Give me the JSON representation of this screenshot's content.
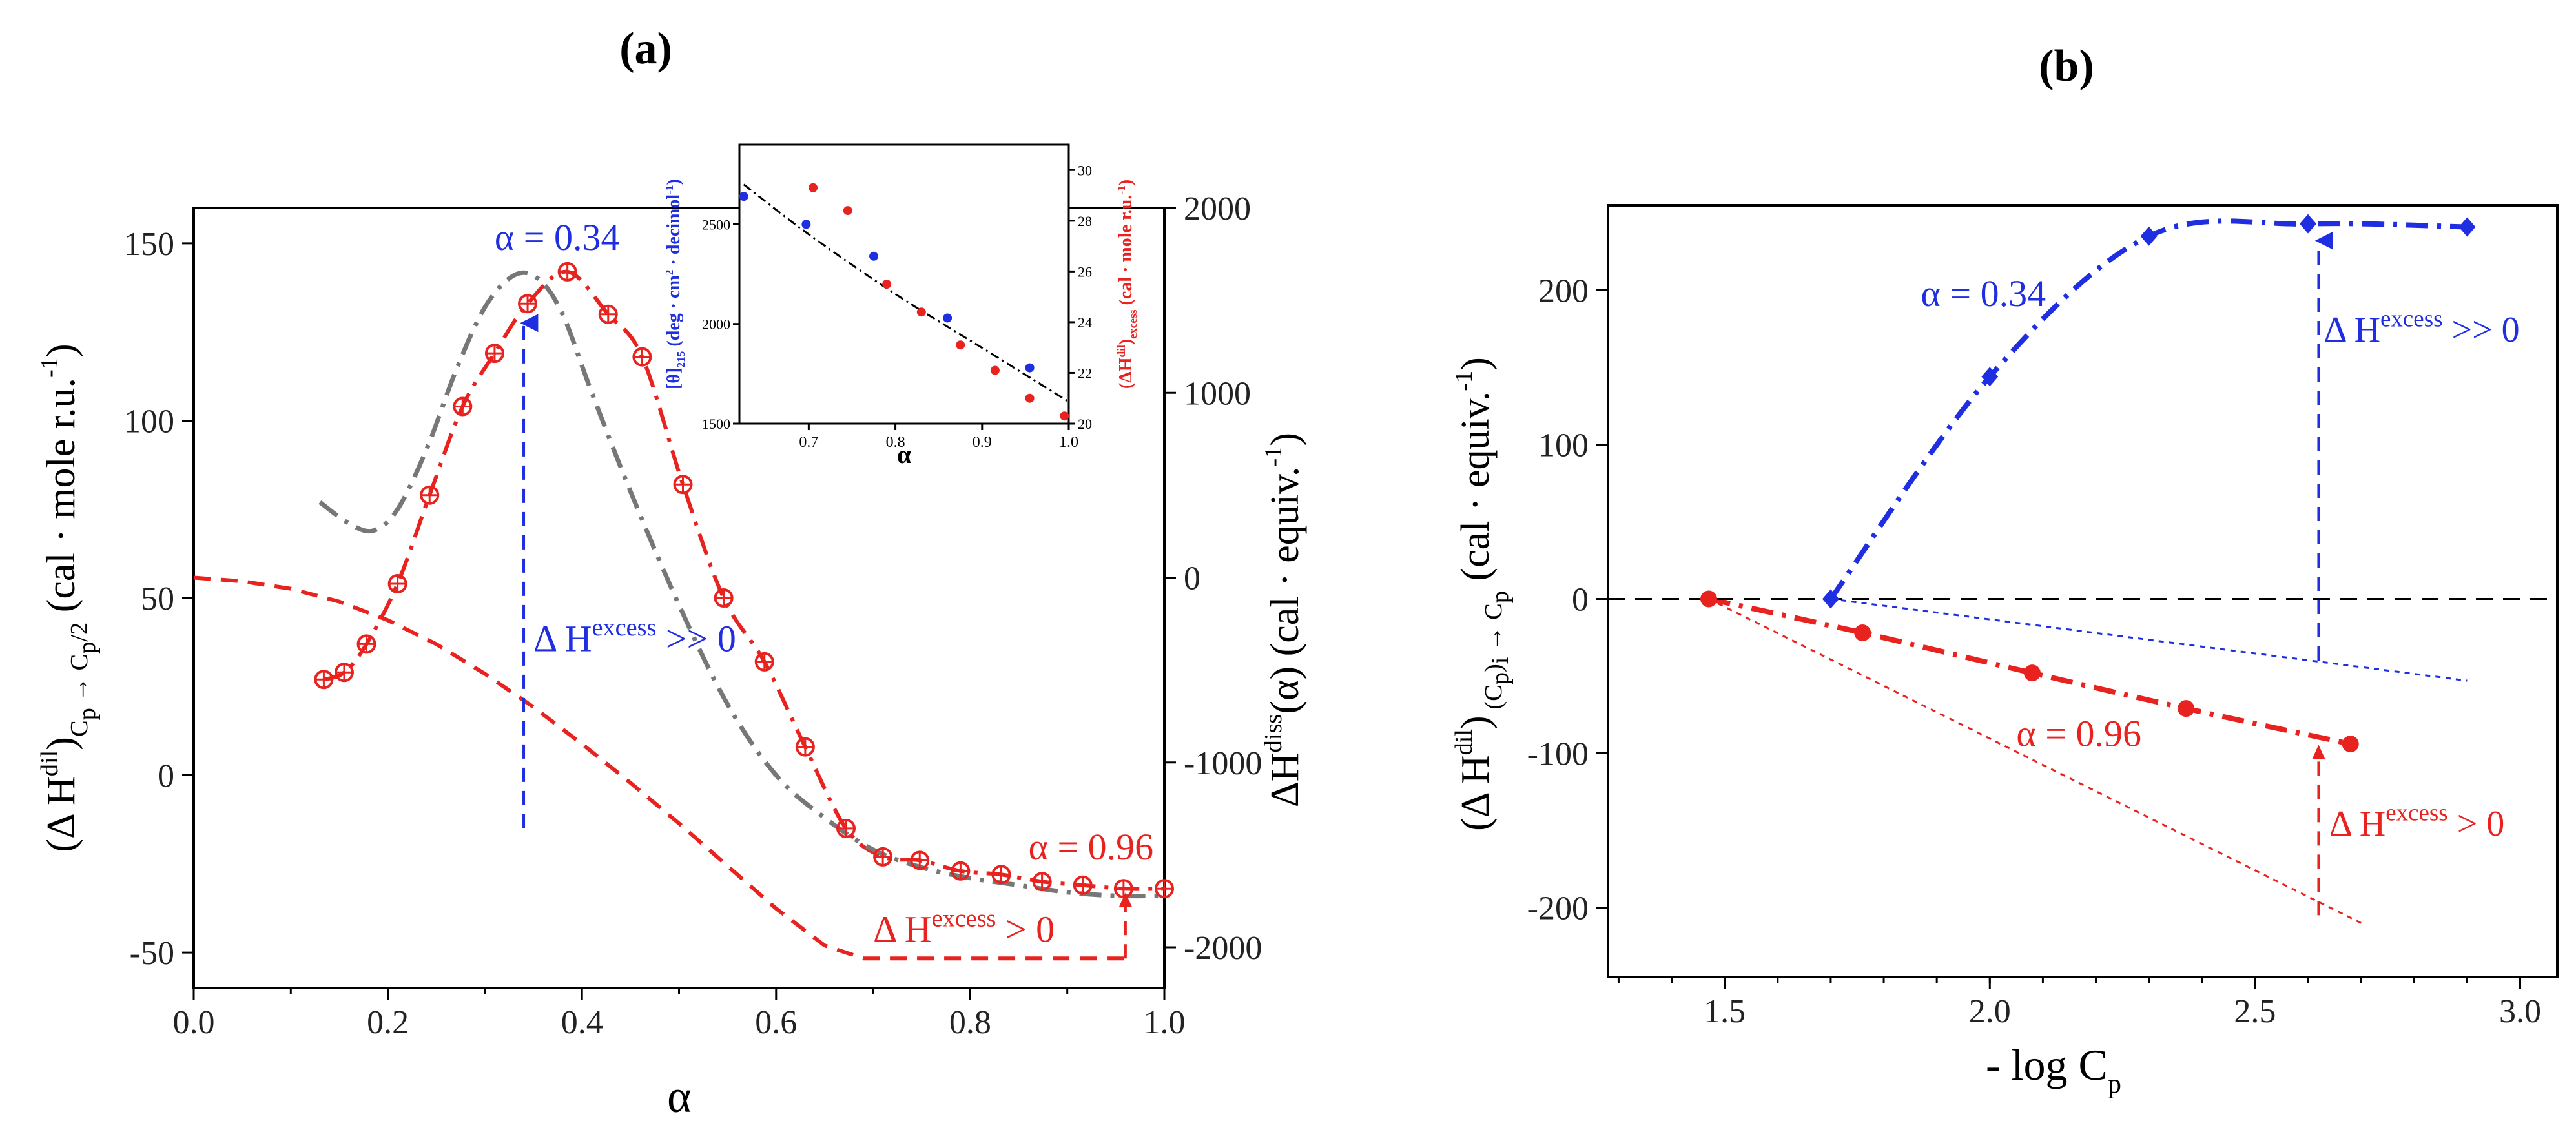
{
  "chart_data": [
    {
      "panel": "a",
      "type": "line",
      "title": "(a)",
      "xlabel": "α",
      "ylabel_left": {
        "main": "(Δ H",
        "sup": "dil",
        "close": ")",
        "sub": "C",
        "sub2": "p",
        "sub3": " → C",
        "sub4": "p",
        "sub5": "/2",
        "unit": " (cal · mole r.u.",
        "unit_sup": "-1",
        "unit_close": ")"
      },
      "ylabel_right": {
        "main": "ΔH",
        "sup": "diss",
        "tail": "(α) (cal · equiv.",
        "tail_sup": "-1",
        "tail_close": ")"
      },
      "xlim": [
        0.0,
        1.0
      ],
      "ylim_left": [
        -60,
        160
      ],
      "ylim_right": [
        -2220,
        2000
      ],
      "xticks": [
        "0.0",
        "0.2",
        "0.4",
        "0.6",
        "0.8",
        "1.0"
      ],
      "yticks_left": [
        "-50",
        "0",
        "50",
        "100",
        "150"
      ],
      "yticks_right": [
        "-2000",
        "-1000",
        "0",
        "1000",
        "2000"
      ],
      "series": [
        {
          "marker": "circle-plus",
          "color": "#e8231f",
          "style": "dash-dot",
          "x": [
            0.134,
            0.155,
            0.178,
            0.21,
            0.243,
            0.277,
            0.31,
            0.344,
            0.385,
            0.427,
            0.462,
            0.504,
            0.546,
            0.588,
            0.63,
            0.672,
            0.71,
            0.748,
            0.79,
            0.832,
            0.874,
            0.916,
            0.958,
            1.0
          ],
          "y": [
            27,
            29,
            37,
            54,
            79,
            104,
            119,
            133,
            142,
            130,
            118,
            82,
            50,
            32,
            8,
            -15,
            -23,
            -24,
            -27,
            -28,
            -30,
            -31,
            -32,
            -32
          ]
        },
        {
          "color": "#777777",
          "style": "dash-dot",
          "x": [
            0.13,
            0.16,
            0.185,
            0.21,
            0.24,
            0.27,
            0.3,
            0.33,
            0.355,
            0.38,
            0.41,
            0.45,
            0.5,
            0.55,
            0.6,
            0.65,
            0.7,
            0.75,
            0.8,
            0.85,
            0.9,
            0.95,
            1.0
          ],
          "y": [
            77,
            71,
            69,
            75,
            92,
            114,
            132,
            141,
            140,
            130,
            108,
            80,
            48,
            20,
            0,
            -12,
            -21,
            -26,
            -29,
            -31,
            -33,
            -34,
            -34
          ]
        },
        {
          "color": "#e8231f",
          "style": "dashed",
          "axis": "right",
          "x": [
            0.0,
            0.05,
            0.1,
            0.15,
            0.2,
            0.25,
            0.3,
            0.35,
            0.4,
            0.45,
            0.5,
            0.55,
            0.6,
            0.65,
            0.69,
            0.96
          ],
          "y": [
            0,
            -20,
            -60,
            -130,
            -230,
            -360,
            -520,
            -700,
            -900,
            -1110,
            -1330,
            -1560,
            -1790,
            -1990,
            -2060,
            -2060
          ]
        }
      ],
      "annotations": [
        {
          "text": "α = 0.34",
          "color": "#1f2ee0"
        },
        {
          "text": "Δ H",
          "sup": "excess",
          "tail": " >> 0",
          "color": "#1f2ee0"
        },
        {
          "text": "α = 0.96",
          "color": "#e8231f"
        },
        {
          "text": "Δ H",
          "sup": "excess",
          "tail": " > 0",
          "color": "#e8231f"
        }
      ],
      "inset": {
        "type": "scatter",
        "xlabel": "α",
        "xticks": [
          "0.7",
          "0.8",
          "0.9",
          "1.0"
        ],
        "xlim": [
          0.62,
          1.0
        ],
        "ylim_left": [
          1500,
          2900
        ],
        "ylim_right": [
          20,
          31
        ],
        "yticks_left": [
          "1500",
          "2000",
          "2500"
        ],
        "yticks_right": [
          "20",
          "22",
          "24",
          "26",
          "28",
          "30"
        ],
        "ylabel_left": {
          "main": "[θ]",
          "sub": "215",
          "tail": " (deg · cm",
          "tail_sup": "2",
          "tail2": " · decimol",
          "tail2_sup": "-1",
          "close": ")"
        },
        "ylabel_right": {
          "main": "(ΔH",
          "sup": "dil",
          "mid": ")",
          "sub": "excess",
          "tail": " (cal · mole r.u.",
          "tail_sup": "-1",
          "close": ")"
        },
        "series": [
          {
            "color": "#1f2ee0",
            "axis": "left",
            "x": [
              0.625,
              0.697,
              0.775,
              0.86,
              0.955
            ],
            "y": [
              2640,
              2500,
              2340,
              2030,
              1780
            ]
          },
          {
            "color": "#e8231f",
            "axis": "right",
            "x": [
              0.705,
              0.745,
              0.79,
              0.83,
              0.875,
              0.915,
              0.955,
              0.995
            ],
            "y": [
              29.3,
              28.4,
              25.5,
              24.4,
              23.1,
              22.1,
              21.0,
              20.3
            ]
          },
          {
            "color": "#000000",
            "style": "dash-dot",
            "axis": "left",
            "x": [
              0.625,
              0.7,
              0.8,
              0.9,
              1.0
            ],
            "y": [
              2700,
              2450,
              2150,
              1880,
              1610
            ]
          }
        ]
      }
    },
    {
      "panel": "b",
      "type": "line",
      "title": "(b)",
      "xlabel": {
        "main": "- log C",
        "sub": "p"
      },
      "ylabel": {
        "main": "(Δ H",
        "sup": "dil",
        "close": ")",
        "sub": " (C",
        "sub2": "p",
        "sub3": ")",
        "sub4": "i",
        "sub5": " → C",
        "sub6": "p",
        "unit": " (cal · equiv.",
        "unit_sup": "-1",
        "unit_close": ")"
      },
      "xlim": [
        1.28,
        3.07
      ],
      "ylim": [
        -245,
        255
      ],
      "xticks": [
        "1.5",
        "2.0",
        "2.5",
        "3.0"
      ],
      "yticks": [
        "-200",
        "-100",
        "0",
        "100",
        "200"
      ],
      "series": [
        {
          "marker": "diamond",
          "color": "#1f2ee0",
          "style": "dash-dot",
          "x": [
            1.7,
            2.0,
            2.3,
            2.6,
            2.9
          ],
          "y": [
            0,
            144,
            235,
            243,
            241
          ]
        },
        {
          "marker": "circle",
          "color": "#e8231f",
          "style": "dash-dot",
          "x": [
            1.47,
            1.76,
            2.08,
            2.37,
            2.68
          ],
          "y": [
            0,
            -22,
            -48,
            -71,
            -94
          ]
        },
        {
          "color": "#1f2ee0",
          "style": "dotted",
          "x": [
            1.7,
            2.9
          ],
          "y": [
            0,
            -53
          ]
        },
        {
          "color": "#e8231f",
          "style": "dotted",
          "x": [
            1.47,
            2.7
          ],
          "y": [
            0,
            -210
          ]
        },
        {
          "color": "#000000",
          "style": "dashed",
          "x": [
            1.28,
            3.07
          ],
          "y": [
            0,
            0
          ]
        }
      ],
      "annotations": [
        {
          "text": "α = 0.34",
          "color": "#1f2ee0"
        },
        {
          "text": "Δ H",
          "sup": "excess",
          "tail": " >> 0",
          "color": "#1f2ee0"
        },
        {
          "text": "α = 0.96",
          "color": "#e8231f"
        },
        {
          "text": "Δ H",
          "sup": "excess",
          "tail": " > 0",
          "color": "#e8231f"
        }
      ]
    }
  ]
}
